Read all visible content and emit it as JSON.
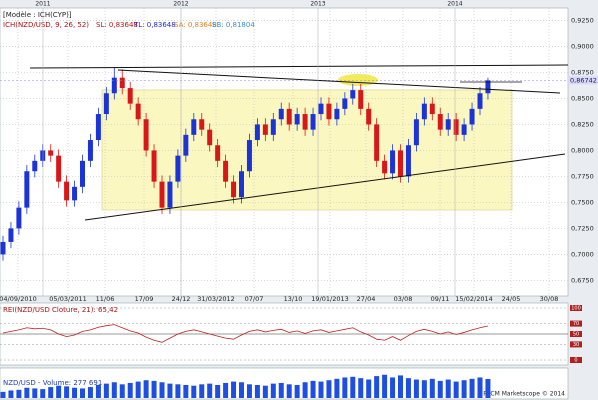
{
  "chart_data": {
    "type": "candlestick",
    "header": "[Modèle : ICH(CYP)]",
    "indicator": "ICH(NZD/USD, 9, 26, 52)",
    "indicator_values": [
      "SL: 0,83648",
      "TL: 0,83648",
      "SA: 0,83648",
      "SB: 0,81804"
    ],
    "year_labels": [
      "2011",
      "2012",
      "2013",
      "2014"
    ],
    "categories": [
      "04/09/2010",
      "05/03/2011",
      "11/06",
      "17/09",
      "24/12",
      "31/03/2012",
      "07/07",
      "13/10",
      "19/01/2013",
      "27/04",
      "03/08",
      "09/11",
      "15/02/2014",
      "24/05",
      "30/08"
    ],
    "up_color": "#1c34d6",
    "down_color": "#d81818",
    "candles": [
      [
        0.7,
        0.718,
        0.694,
        0.712
      ],
      [
        0.712,
        0.731,
        0.706,
        0.725
      ],
      [
        0.725,
        0.751,
        0.719,
        0.745
      ],
      [
        0.745,
        0.786,
        0.739,
        0.78
      ],
      [
        0.78,
        0.796,
        0.774,
        0.79
      ],
      [
        0.79,
        0.806,
        0.784,
        0.8
      ],
      [
        0.8,
        0.806,
        0.789,
        0.795
      ],
      [
        0.795,
        0.801,
        0.764,
        0.77
      ],
      [
        0.77,
        0.776,
        0.746,
        0.752
      ],
      [
        0.752,
        0.771,
        0.746,
        0.765
      ],
      [
        0.765,
        0.796,
        0.759,
        0.79
      ],
      [
        0.79,
        0.816,
        0.784,
        0.81
      ],
      [
        0.81,
        0.841,
        0.804,
        0.835
      ],
      [
        0.835,
        0.861,
        0.829,
        0.855
      ],
      [
        0.855,
        0.88,
        0.849,
        0.87
      ],
      [
        0.87,
        0.878,
        0.854,
        0.86
      ],
      [
        0.86,
        0.866,
        0.839,
        0.845
      ],
      [
        0.845,
        0.851,
        0.824,
        0.83
      ],
      [
        0.83,
        0.836,
        0.794,
        0.8
      ],
      [
        0.8,
        0.806,
        0.764,
        0.77
      ],
      [
        0.77,
        0.776,
        0.739,
        0.745
      ],
      [
        0.745,
        0.776,
        0.739,
        0.77
      ],
      [
        0.77,
        0.801,
        0.764,
        0.795
      ],
      [
        0.795,
        0.821,
        0.789,
        0.815
      ],
      [
        0.815,
        0.836,
        0.809,
        0.83
      ],
      [
        0.83,
        0.836,
        0.814,
        0.82
      ],
      [
        0.82,
        0.826,
        0.799,
        0.805
      ],
      [
        0.805,
        0.811,
        0.784,
        0.79
      ],
      [
        0.79,
        0.796,
        0.764,
        0.77
      ],
      [
        0.77,
        0.776,
        0.749,
        0.755
      ],
      [
        0.755,
        0.786,
        0.749,
        0.78
      ],
      [
        0.78,
        0.816,
        0.774,
        0.81
      ],
      [
        0.81,
        0.831,
        0.804,
        0.825
      ],
      [
        0.825,
        0.831,
        0.809,
        0.815
      ],
      [
        0.815,
        0.836,
        0.809,
        0.83
      ],
      [
        0.83,
        0.846,
        0.824,
        0.84
      ],
      [
        0.84,
        0.846,
        0.819,
        0.825
      ],
      [
        0.825,
        0.841,
        0.819,
        0.835
      ],
      [
        0.835,
        0.841,
        0.814,
        0.82
      ],
      [
        0.82,
        0.841,
        0.814,
        0.835
      ],
      [
        0.835,
        0.851,
        0.829,
        0.845
      ],
      [
        0.845,
        0.851,
        0.824,
        0.83
      ],
      [
        0.83,
        0.846,
        0.824,
        0.84
      ],
      [
        0.84,
        0.856,
        0.834,
        0.85
      ],
      [
        0.85,
        0.864,
        0.844,
        0.858
      ],
      [
        0.858,
        0.864,
        0.834,
        0.84
      ],
      [
        0.84,
        0.846,
        0.819,
        0.825
      ],
      [
        0.825,
        0.831,
        0.784,
        0.79
      ],
      [
        0.79,
        0.796,
        0.772,
        0.778
      ],
      [
        0.778,
        0.806,
        0.772,
        0.8
      ],
      [
        0.8,
        0.806,
        0.769,
        0.775
      ],
      [
        0.775,
        0.811,
        0.769,
        0.805
      ],
      [
        0.805,
        0.836,
        0.799,
        0.83
      ],
      [
        0.83,
        0.851,
        0.824,
        0.845
      ],
      [
        0.845,
        0.851,
        0.829,
        0.835
      ],
      [
        0.835,
        0.841,
        0.814,
        0.82
      ],
      [
        0.82,
        0.836,
        0.814,
        0.83
      ],
      [
        0.83,
        0.836,
        0.809,
        0.815
      ],
      [
        0.815,
        0.831,
        0.809,
        0.825
      ],
      [
        0.825,
        0.846,
        0.819,
        0.84
      ],
      [
        0.84,
        0.861,
        0.834,
        0.855
      ],
      [
        0.855,
        0.87,
        0.849,
        0.86742
      ]
    ],
    "last_price": {
      "value": 0.86742,
      "label": "0,86742"
    },
    "ylim": [
      0.66,
      0.937
    ],
    "yticks": [
      {
        "value": 0.675,
        "label": "0,6750"
      },
      {
        "value": 0.7,
        "label": "0,7000"
      },
      {
        "value": 0.725,
        "label": "0,7250"
      },
      {
        "value": 0.75,
        "label": "0,7500"
      },
      {
        "value": 0.775,
        "label": "0,7750"
      },
      {
        "value": 0.8,
        "label": "0,8000"
      },
      {
        "value": 0.825,
        "label": "0,8250"
      },
      {
        "value": 0.85,
        "label": "0,8500"
      },
      {
        "value": 0.875,
        "label": "0,8750"
      },
      {
        "value": 0.9,
        "label": "0,9000"
      },
      {
        "value": 0.925,
        "label": "0,9250"
      }
    ],
    "grid": true,
    "rsi_title": "REI(NZD/USD Cloture, 21): 65,42",
    "rsi": [
      52,
      55,
      58,
      62,
      60,
      61,
      58,
      50,
      45,
      48,
      55,
      58,
      63,
      66,
      68,
      62,
      56,
      52,
      44,
      38,
      34,
      42,
      50,
      55,
      58,
      54,
      50,
      46,
      42,
      40,
      48,
      55,
      58,
      54,
      57,
      59,
      53,
      56,
      51,
      56,
      58,
      53,
      56,
      59,
      62,
      54,
      48,
      40,
      38,
      45,
      38,
      47,
      55,
      59,
      55,
      50,
      54,
      49,
      53,
      58,
      62,
      65.42
    ],
    "rsi_color": "#c02020",
    "rsi_ylim": [
      0,
      100
    ],
    "rsi_yticks": [
      0,
      30,
      50,
      70,
      100
    ],
    "volume_title": "NZD/USD - Volume: 277 691",
    "volume_color": "#1f4fe0",
    "volume": [
      90000,
      110000,
      120000,
      150000,
      140000,
      130000,
      160000,
      180000,
      170000,
      150000,
      140000,
      160000,
      190000,
      210000,
      230000,
      200000,
      220000,
      240000,
      260000,
      250000,
      230000,
      210000,
      200000,
      190000,
      180000,
      200000,
      210000,
      190000,
      220000,
      240000,
      230000,
      200000,
      190000,
      180000,
      210000,
      220000,
      200000,
      190000,
      230000,
      250000,
      240000,
      260000,
      280000,
      300000,
      310000,
      290000,
      270000,
      320000,
      340000,
      300000,
      330000,
      290000,
      270000,
      260000,
      280000,
      250000,
      270000,
      240000,
      260000,
      280000,
      300000,
      277691
    ],
    "volume_ylim": [
      0,
      380000
    ],
    "footer": "FXCM Marketscope © 2014"
  }
}
